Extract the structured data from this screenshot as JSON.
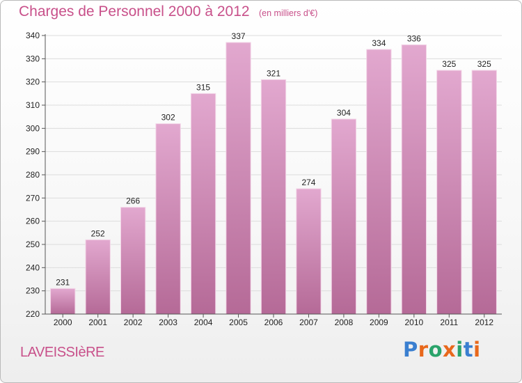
{
  "header": {
    "title": "Charges de Personnel 2000 à 2012",
    "subtitle": "(en milliers d'€)"
  },
  "footer": {
    "town": "LAVEISSIèRE",
    "logo_text": "Proxiti",
    "logo_colors": [
      "#3a7fd0",
      "#e8681c",
      "#2aa36a",
      "#e8681c",
      "#2aa36a",
      "#3a7fd0",
      "#e8681c"
    ]
  },
  "colors": {
    "bar_top": "#e2a8cf",
    "bar_bottom": "#b56a97",
    "grid": "#dcdcdc",
    "title": "#c8508a"
  },
  "chart_data": {
    "type": "bar",
    "title": "Charges de Personnel 2000 à 2012",
    "subtitle": "(en milliers d'€)",
    "categories": [
      "2000",
      "2001",
      "2002",
      "2003",
      "2004",
      "2005",
      "2006",
      "2007",
      "2008",
      "2009",
      "2010",
      "2011",
      "2012"
    ],
    "values": [
      231,
      252,
      266,
      302,
      315,
      337,
      321,
      274,
      304,
      334,
      336,
      325,
      325
    ],
    "ylim": [
      220,
      340
    ],
    "yticks": [
      220,
      230,
      240,
      250,
      260,
      270,
      280,
      290,
      300,
      310,
      320,
      330,
      340
    ],
    "grid": true,
    "data_labels": true,
    "legend": "none"
  }
}
